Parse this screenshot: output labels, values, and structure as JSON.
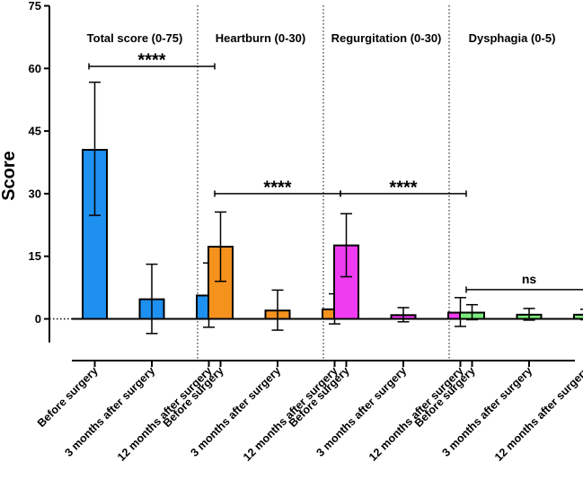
{
  "chart_data": {
    "type": "bar",
    "ylabel": "Score",
    "ylim": [
      -5,
      75
    ],
    "yticks": [
      0,
      15,
      30,
      45,
      60,
      75
    ],
    "categories": [
      "Before surgery",
      "3 months after surgery",
      "12 months after surgery"
    ],
    "panels": [
      {
        "title": "Total score (0-75)",
        "color": "#1E90F0",
        "values": [
          40.5,
          4.7,
          5.6
        ],
        "error_low": [
          24.8,
          -3.5,
          -2.0
        ],
        "error_high": [
          56.7,
          13.1,
          13.4
        ],
        "significance": "****",
        "sig_level": 60.5
      },
      {
        "title": "Heartburn (0-30)",
        "color": "#F5921E",
        "values": [
          17.3,
          2.0,
          2.3
        ],
        "error_low": [
          9.0,
          -2.7,
          -1.2
        ],
        "error_high": [
          25.6,
          6.9,
          6.0
        ],
        "significance": "****",
        "sig_level": 30
      },
      {
        "title": "Regurgitation (0-30)",
        "color": "#F03CF0",
        "values": [
          17.6,
          0.9,
          1.5
        ],
        "error_low": [
          10.1,
          -0.7,
          -1.8
        ],
        "error_high": [
          25.2,
          2.7,
          5.1
        ],
        "significance": "****",
        "sig_level": 30
      },
      {
        "title": "Dysphagia (0-5)",
        "color": "#7DEB7D",
        "values": [
          1.5,
          1.0,
          1.0
        ],
        "error_low": [
          -0.2,
          -0.3,
          -0.2
        ],
        "error_high": [
          3.4,
          2.5,
          2.3
        ],
        "significance": "ns",
        "sig_level": 7
      }
    ]
  }
}
